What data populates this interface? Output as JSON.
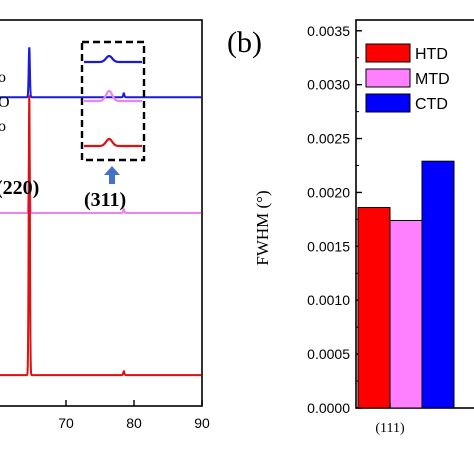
{
  "chart_data": [
    {
      "type": "line",
      "panel_label": "",
      "xlabel": "",
      "ylabel": "",
      "xlim": [
        60,
        90
      ],
      "x_ticks": [
        "70",
        "80",
        "90"
      ],
      "peak_labels": [
        "(220)",
        "(311)"
      ],
      "legend_fragments": [
        "o",
        "O",
        "o"
      ],
      "series": [
        {
          "color": "#1a1adc",
          "baseline": 0.8,
          "peaks": [
            {
              "x": 64.6,
              "h": 0.13
            },
            {
              "x": 78.5,
              "h": 0.01
            }
          ]
        },
        {
          "color": "#ee82ee",
          "baseline": 0.5,
          "peaks": [
            {
              "x": 64.6,
              "h": 0.16
            },
            {
              "x": 78.5,
              "h": 0.01
            }
          ]
        },
        {
          "color": "#dd1111",
          "baseline": 0.08,
          "peaks": [
            {
              "x": 64.6,
              "h": 0.73
            },
            {
              "x": 78.5,
              "h": 0.01
            }
          ]
        }
      ],
      "inset": {
        "type": "line",
        "series_colors": [
          "#1a1adc",
          "#ee82ee",
          "#dd1111"
        ]
      }
    },
    {
      "type": "bar",
      "panel_label": "(b)",
      "ylabel": "FWHM (°)",
      "ylim": [
        0,
        0.0036
      ],
      "y_ticks": [
        "0.0000",
        "0.0005",
        "0.0010",
        "0.0015",
        "0.0020",
        "0.0025",
        "0.0030",
        "0.0035"
      ],
      "categories": [
        "(111)"
      ],
      "series": [
        {
          "name": "HTD",
          "color": "#ff0000",
          "values": [
            0.00186
          ]
        },
        {
          "name": "MTD",
          "color": "#ff80ff",
          "values": [
            0.00174
          ]
        },
        {
          "name": "CTD",
          "color": "#0000ff",
          "values": [
            0.00229
          ]
        }
      ],
      "legend_position": "top-left"
    }
  ]
}
